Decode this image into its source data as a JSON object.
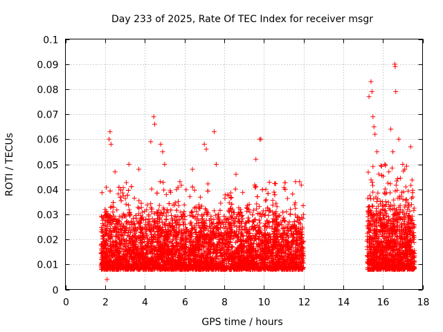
{
  "chart_data": {
    "type": "scatter",
    "title": "Day 233 of 2025, Rate Of TEC Index for receiver msgr",
    "xlabel": "GPS time / hours",
    "ylabel": "ROTI / TECUs",
    "xlim": [
      0,
      18
    ],
    "ylim": [
      0,
      0.1
    ],
    "xticks": [
      "0",
      "2",
      "4",
      "6",
      "8",
      "10",
      "12",
      "14",
      "16",
      "18"
    ],
    "yticks": [
      "0",
      "0.01",
      "0.02",
      "0.03",
      "0.04",
      "0.05",
      "0.06",
      "0.07",
      "0.08",
      "0.09",
      "0.1"
    ],
    "grid": true,
    "marker": "+",
    "color": "#ff0000",
    "data_gap": [
      12.0,
      15.2
    ],
    "series": [
      {
        "clusters": [
          {
            "x_range": [
              1.8,
              12.0
            ],
            "typical_range": [
              0.008,
              0.035
            ]
          },
          {
            "x_range": [
              15.2,
              17.6
            ],
            "typical_range": [
              0.008,
              0.04
            ]
          }
        ],
        "points": [
          [
            2.1,
            0.004
          ],
          [
            2.2,
            0.06
          ],
          [
            2.25,
            0.063
          ],
          [
            2.3,
            0.058
          ],
          [
            2.5,
            0.047
          ],
          [
            3.2,
            0.05
          ],
          [
            3.7,
            0.048
          ],
          [
            4.3,
            0.059
          ],
          [
            4.45,
            0.069
          ],
          [
            4.5,
            0.066
          ],
          [
            4.8,
            0.058
          ],
          [
            4.9,
            0.055
          ],
          [
            5.0,
            0.05
          ],
          [
            6.4,
            0.048
          ],
          [
            7.0,
            0.058
          ],
          [
            7.1,
            0.056
          ],
          [
            7.5,
            0.063
          ],
          [
            7.6,
            0.05
          ],
          [
            8.6,
            0.046
          ],
          [
            9.6,
            0.052
          ],
          [
            9.8,
            0.06
          ],
          [
            9.85,
            0.06
          ],
          [
            10.1,
            0.04
          ],
          [
            11.8,
            0.043
          ],
          [
            15.3,
            0.077
          ],
          [
            15.4,
            0.083
          ],
          [
            15.45,
            0.079
          ],
          [
            15.5,
            0.069
          ],
          [
            15.55,
            0.065
          ],
          [
            15.6,
            0.062
          ],
          [
            15.7,
            0.055
          ],
          [
            16.1,
            0.05
          ],
          [
            16.3,
            0.047
          ],
          [
            16.4,
            0.064
          ],
          [
            16.5,
            0.055
          ],
          [
            16.6,
            0.09
          ],
          [
            16.62,
            0.089
          ],
          [
            16.65,
            0.079
          ],
          [
            16.8,
            0.06
          ],
          [
            17.0,
            0.05
          ],
          [
            17.1,
            0.048
          ],
          [
            17.4,
            0.057
          ]
        ]
      }
    ]
  }
}
